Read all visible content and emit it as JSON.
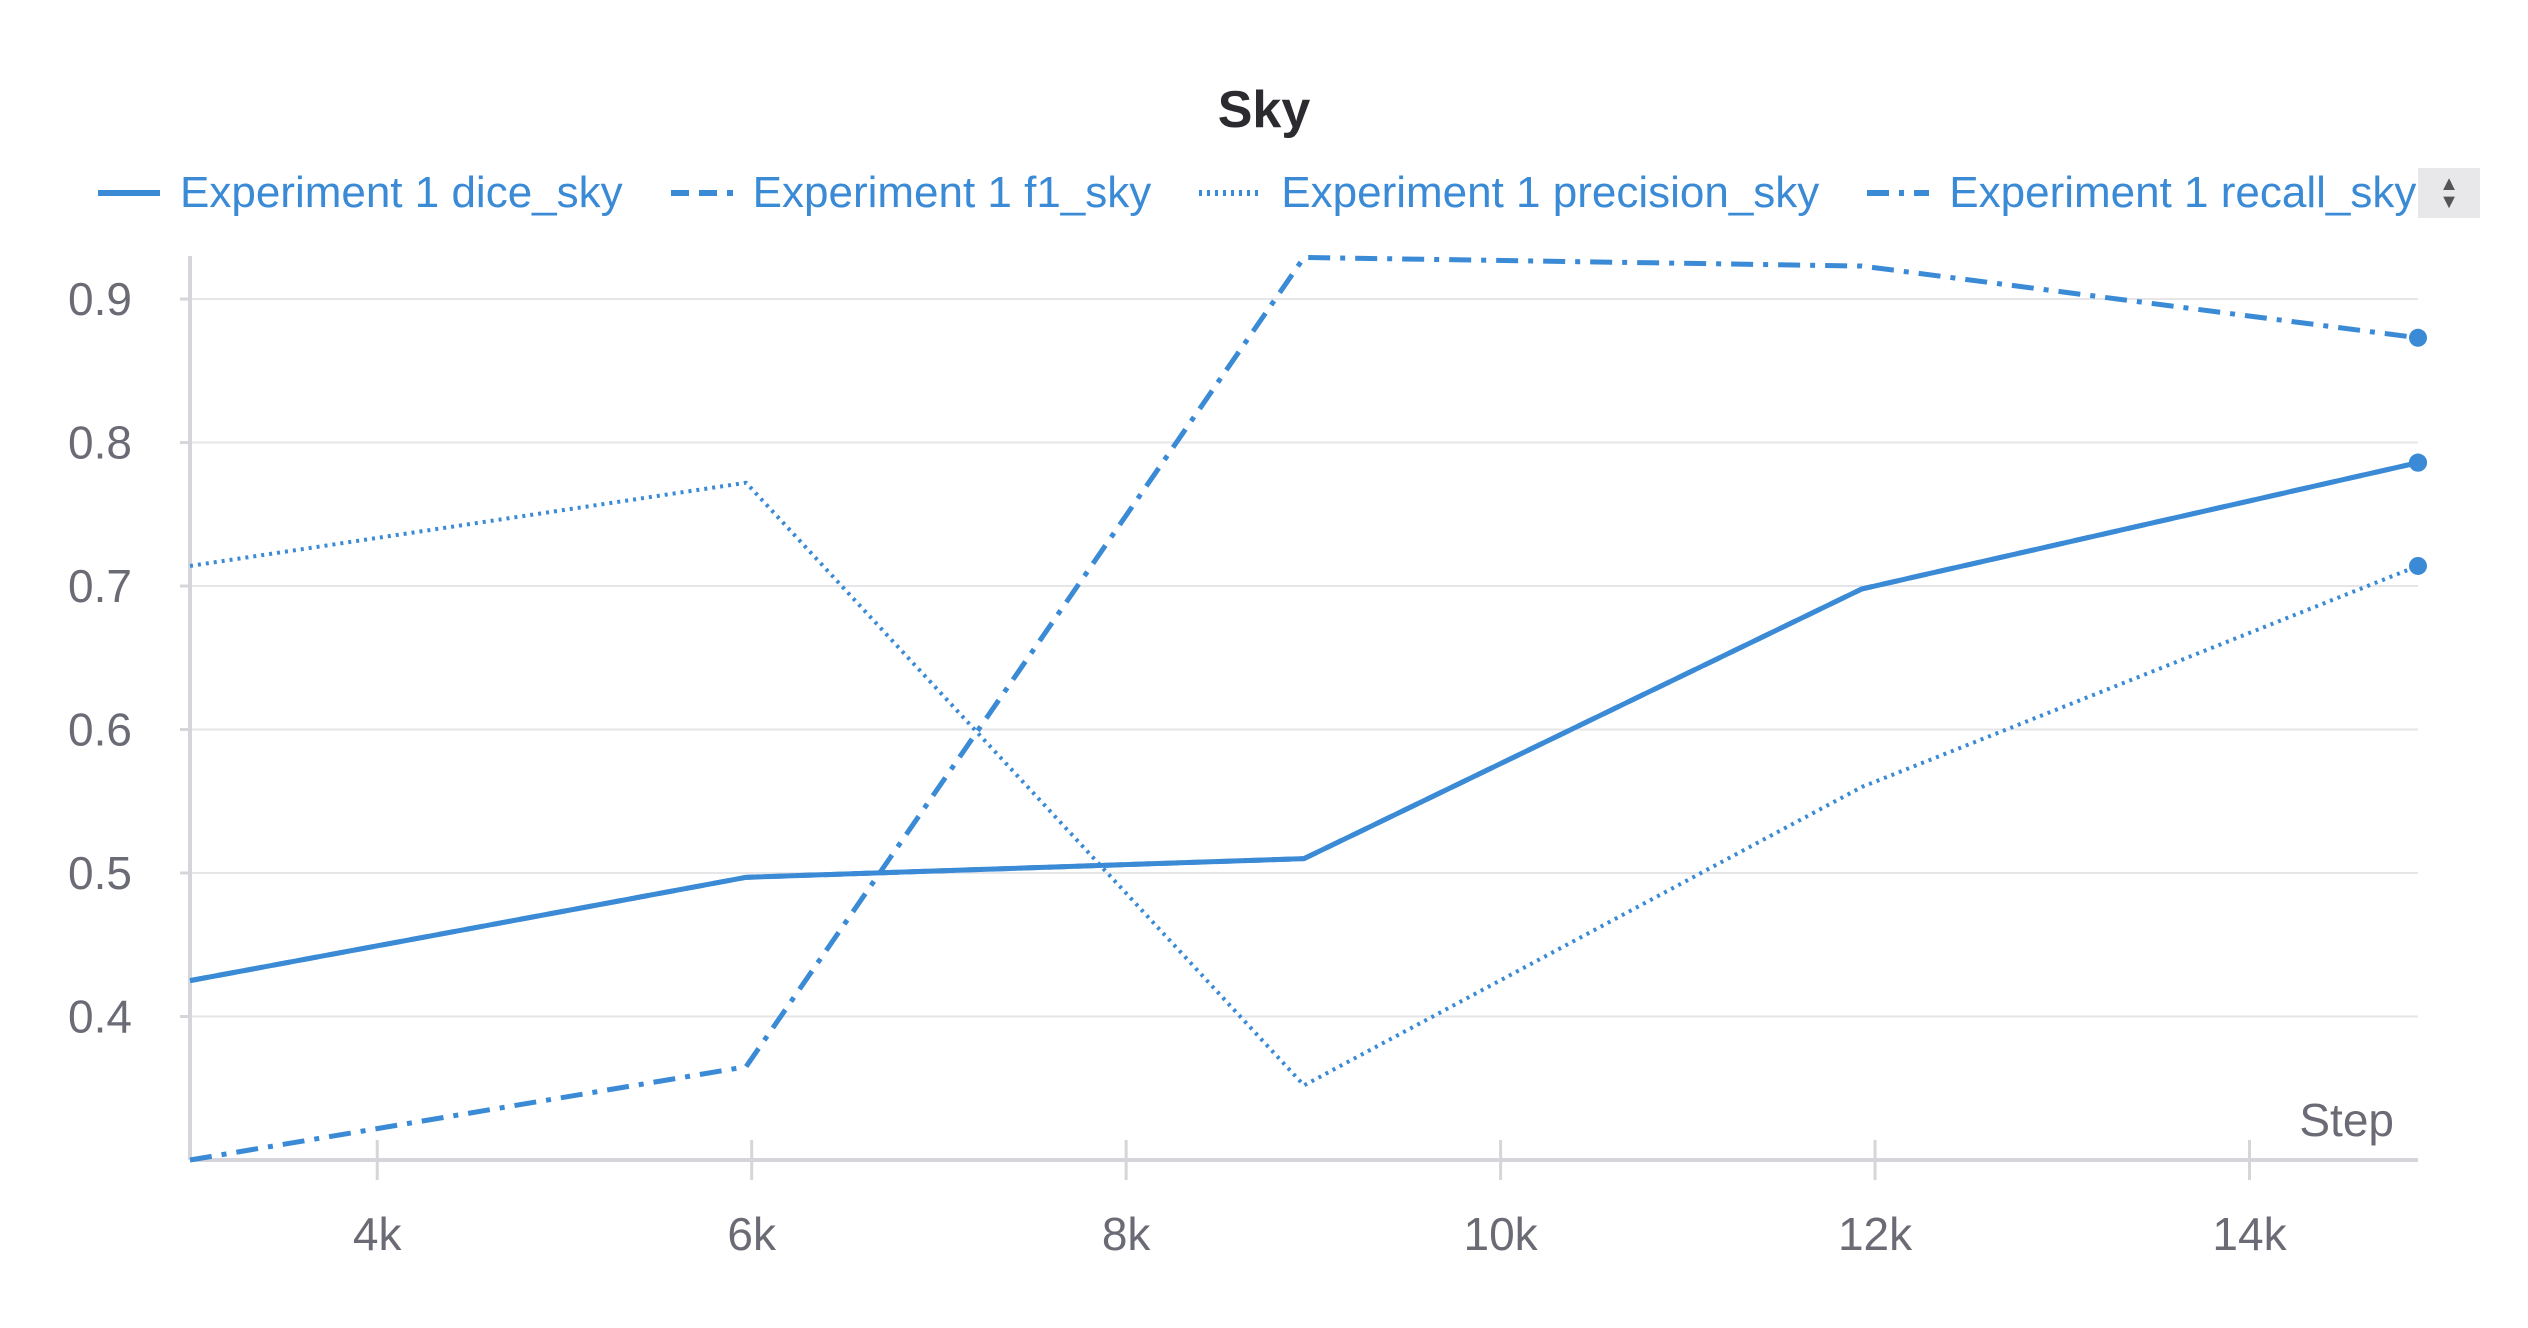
{
  "chart_data": {
    "type": "line",
    "title": "Sky",
    "xlabel": "Step",
    "ylabel": "",
    "xlim": [
      3000,
      14900
    ],
    "ylim": [
      0.3,
      0.93
    ],
    "x_ticks": [
      {
        "value": 4000,
        "label": "4k"
      },
      {
        "value": 6000,
        "label": "6k"
      },
      {
        "value": 8000,
        "label": "8k"
      },
      {
        "value": 10000,
        "label": "10k"
      },
      {
        "value": 12000,
        "label": "12k"
      },
      {
        "value": 14000,
        "label": "14k"
      }
    ],
    "y_ticks": [
      {
        "value": 0.4,
        "label": "0.4"
      },
      {
        "value": 0.5,
        "label": "0.5"
      },
      {
        "value": 0.6,
        "label": "0.6"
      },
      {
        "value": 0.7,
        "label": "0.7"
      },
      {
        "value": 0.8,
        "label": "0.8"
      },
      {
        "value": 0.9,
        "label": "0.9"
      }
    ],
    "grid": true,
    "legend_position": "top",
    "color": "#3a8ad6",
    "series": [
      {
        "name": "Experiment 1 dice_sky",
        "style": "solid",
        "x": [
          3000,
          5970,
          8950,
          11930,
          14900
        ],
        "y": [
          0.425,
          0.497,
          0.51,
          0.698,
          0.786
        ]
      },
      {
        "name": "Experiment 1 f1_sky",
        "style": "dashed",
        "x": [
          3000,
          5970,
          8950,
          11930,
          14900
        ],
        "y": [
          0.425,
          0.497,
          0.51,
          0.698,
          0.786
        ]
      },
      {
        "name": "Experiment 1 precision_sky",
        "style": "dotted",
        "x": [
          3000,
          5970,
          8950,
          11930,
          14900
        ],
        "y": [
          0.714,
          0.772,
          0.352,
          0.56,
          0.714
        ]
      },
      {
        "name": "Experiment 1 recall_sky",
        "style": "dashdot",
        "x": [
          3000,
          5970,
          8950,
          11930,
          14900
        ],
        "y": [
          0.3,
          0.365,
          0.929,
          0.923,
          0.873
        ]
      }
    ]
  },
  "legend_scroll": {
    "up": "▲",
    "down": "▼"
  }
}
